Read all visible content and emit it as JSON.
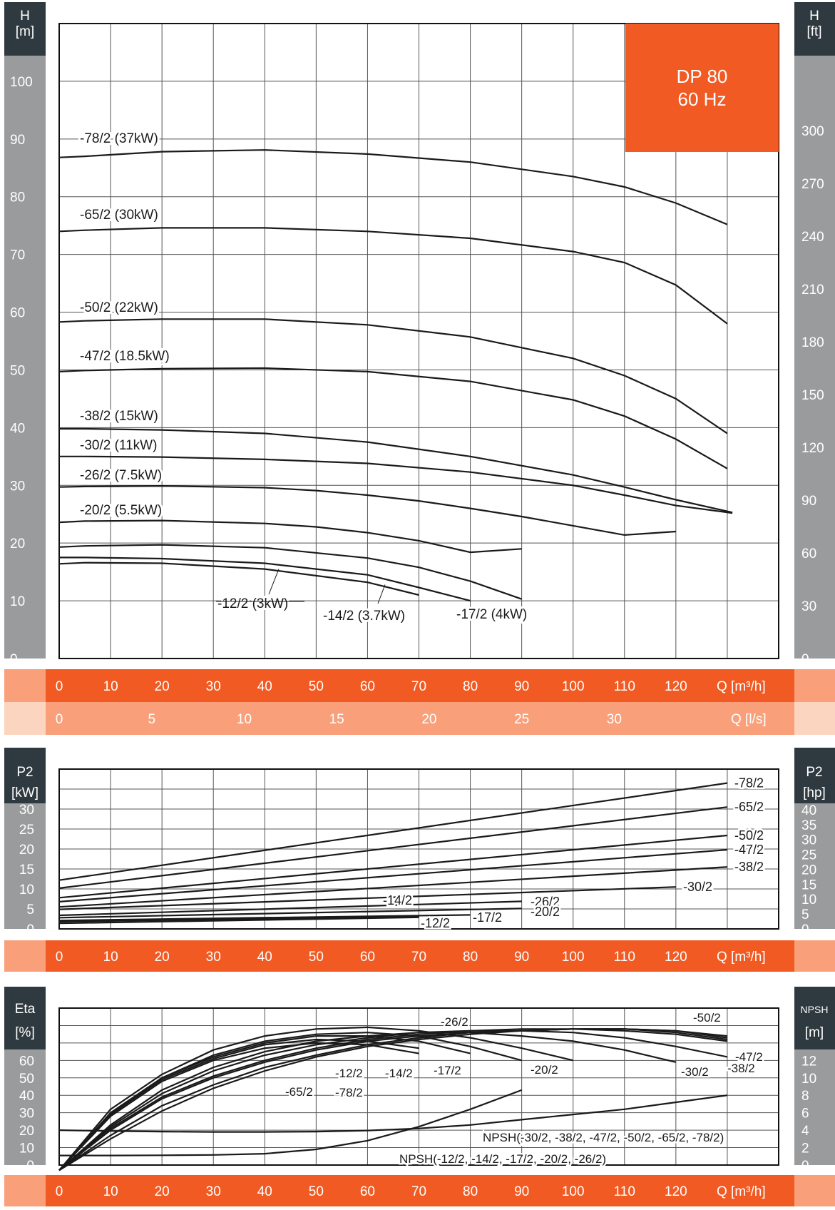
{
  "colors": {
    "orange": "#f15a22",
    "light_orange": "#f9a07a",
    "pale_orange": "#fbd5c0",
    "sidebar_gray": "#9a9b9d",
    "sidebar_dark": "#2f3a40",
    "curve": "#1a1a1a",
    "grid": "#555555"
  },
  "header_box": {
    "line1": "DP 80",
    "line2": "60 Hz"
  },
  "chart_data": [
    {
      "name": "head",
      "type": "line",
      "left_axis": {
        "label_top": "H",
        "label_unit": "[m]",
        "ticks": [
          0,
          10,
          20,
          30,
          40,
          50,
          60,
          70,
          80,
          90,
          100
        ],
        "ylim": [
          0,
          110
        ]
      },
      "right_axis": {
        "label_top": "H",
        "label_unit": "[ft]",
        "ticks": [
          0,
          30,
          60,
          90,
          120,
          150,
          180,
          210,
          240,
          270,
          300
        ]
      },
      "x_axis": {
        "ticks": [
          0,
          10,
          20,
          30,
          40,
          50,
          60,
          70,
          80,
          90,
          100,
          110,
          120
        ],
        "unit": "Q [m³/h]",
        "xlim": [
          0,
          140
        ]
      },
      "x_axis_ls": {
        "ticks": [
          0,
          5,
          10,
          15,
          20,
          25,
          30
        ],
        "unit": "Q [l/s]"
      },
      "series": [
        {
          "name": "-78/2 (37kW)",
          "x": [
            0,
            5,
            20,
            40,
            60,
            80,
            100,
            110,
            120,
            130
          ],
          "y": [
            86.8,
            87.0,
            87.8,
            88.1,
            87.4,
            86.0,
            83.5,
            81.7,
            78.9,
            75.2
          ]
        },
        {
          "name": "-65/2 (30kW)",
          "x": [
            0,
            5,
            20,
            40,
            60,
            80,
            100,
            110,
            120,
            130
          ],
          "y": [
            74.0,
            74.2,
            74.6,
            74.6,
            74.0,
            72.8,
            70.5,
            68.6,
            64.7,
            58.0
          ]
        },
        {
          "name": "-50/2 (22kW)",
          "x": [
            0,
            5,
            20,
            40,
            60,
            80,
            100,
            110,
            120,
            130
          ],
          "y": [
            58.3,
            58.5,
            58.8,
            58.8,
            57.8,
            55.7,
            52.0,
            49.0,
            45.0,
            39.0
          ]
        },
        {
          "name": "-47/2 (18.5kW)",
          "x": [
            0,
            5,
            20,
            40,
            60,
            80,
            100,
            110,
            120,
            130
          ],
          "y": [
            49.7,
            49.9,
            50.2,
            50.3,
            49.7,
            48.0,
            44.8,
            42.0,
            38.0,
            32.9
          ]
        },
        {
          "name": "-38/2 (15kW)",
          "x": [
            0,
            5,
            20,
            40,
            60,
            80,
            100,
            110,
            120,
            131
          ],
          "y": [
            39.8,
            39.8,
            39.6,
            39.0,
            37.5,
            35.0,
            31.8,
            29.7,
            27.5,
            25.3
          ]
        },
        {
          "name": "-30/2 (11kW)",
          "x": [
            0,
            5,
            20,
            40,
            60,
            80,
            100,
            110,
            120,
            131
          ],
          "y": [
            35.0,
            35.0,
            34.9,
            34.5,
            33.8,
            32.3,
            30.0,
            28.3,
            26.5,
            25.2
          ]
        },
        {
          "name": "-26/2 (7.5kW)",
          "x": [
            0,
            5,
            20,
            40,
            50,
            60,
            70,
            80,
            90,
            100,
            110,
            120
          ],
          "y": [
            29.7,
            29.8,
            29.9,
            29.6,
            29.1,
            28.3,
            27.3,
            26.0,
            24.6,
            23.0,
            21.4,
            22.0
          ]
        },
        {
          "name": "-20/2 (5.5kW)",
          "x": [
            0,
            5,
            20,
            40,
            50,
            60,
            70,
            80,
            90
          ],
          "y": [
            23.6,
            23.8,
            23.9,
            23.4,
            22.8,
            21.8,
            20.4,
            18.4,
            19.0
          ]
        },
        {
          "name": "-17/2 (4kW)",
          "x": [
            0,
            5,
            20,
            40,
            60,
            70,
            80,
            90
          ],
          "y": [
            19.3,
            19.5,
            19.7,
            19.2,
            17.4,
            15.8,
            13.4,
            10.3
          ]
        },
        {
          "name": "-14/2 (3.7kW)",
          "x": [
            0,
            5,
            20,
            40,
            60,
            70,
            80
          ],
          "y": [
            17.5,
            17.5,
            17.3,
            16.5,
            14.5,
            12.3,
            10.0
          ]
        },
        {
          "name": "-12/2 (3kW)",
          "x": [
            0,
            5,
            20,
            40,
            60,
            70
          ],
          "y": [
            16.4,
            16.6,
            16.5,
            15.5,
            13.2,
            11.0
          ]
        }
      ]
    },
    {
      "name": "power",
      "type": "line",
      "left_axis": {
        "label_top": "P2",
        "label_unit": "[kW]",
        "ticks": [
          0,
          5,
          10,
          15,
          20,
          25,
          30
        ],
        "ylim": [
          0,
          40
        ]
      },
      "right_axis": {
        "label_top": "P2",
        "label_unit": "[hp]",
        "ticks": [
          0,
          5,
          10,
          15,
          20,
          25,
          30,
          35,
          40
        ]
      },
      "x_axis": {
        "ticks": [
          0,
          10,
          20,
          30,
          40,
          50,
          60,
          70,
          80,
          90,
          100,
          110,
          120
        ],
        "unit": "Q [m³/h]",
        "xlim": [
          0,
          140
        ]
      },
      "series": [
        {
          "name": "-78/2",
          "x": [
            0,
            130
          ],
          "y": [
            12.2,
            36.5
          ]
        },
        {
          "name": "-65/2",
          "x": [
            0,
            130
          ],
          "y": [
            10.2,
            30.5
          ]
        },
        {
          "name": "-50/2",
          "x": [
            0,
            130
          ],
          "y": [
            7.8,
            23.4
          ]
        },
        {
          "name": "-47/2",
          "x": [
            0,
            130
          ],
          "y": [
            6.8,
            19.8
          ]
        },
        {
          "name": "-38/2",
          "x": [
            0,
            130
          ],
          "y": [
            5.5,
            15.5
          ]
        },
        {
          "name": "-30/2",
          "x": [
            0,
            120
          ],
          "y": [
            4.9,
            10.5
          ]
        },
        {
          "name": "-26/2",
          "x": [
            0,
            90
          ],
          "y": [
            3.4,
            6.9
          ]
        },
        {
          "name": "-20/2",
          "x": [
            0,
            90
          ],
          "y": [
            2.8,
            5.1
          ]
        },
        {
          "name": "-17/2",
          "x": [
            0,
            80
          ],
          "y": [
            2.1,
            3.5
          ]
        },
        {
          "name": "-14/2",
          "x": [
            0,
            70
          ],
          "y": [
            1.8,
            3.1
          ]
        },
        {
          "name": "-12/2",
          "x": [
            0,
            70
          ],
          "y": [
            1.4,
            2.9
          ]
        }
      ]
    },
    {
      "name": "efficiency",
      "type": "line",
      "left_axis": {
        "label_top": "Eta",
        "label_unit": "[%]",
        "ticks": [
          0,
          10,
          20,
          30,
          40,
          50,
          60
        ],
        "ylim": [
          0,
          90
        ]
      },
      "right_axis": {
        "label_top": "NPSH",
        "label_unit": "[m]",
        "ticks": [
          0,
          2,
          4,
          6,
          8,
          10,
          12
        ]
      },
      "x_axis": {
        "ticks": [
          0,
          10,
          20,
          30,
          40,
          50,
          60,
          70,
          80,
          90,
          100,
          110,
          120
        ],
        "unit": "Q [m³/h]",
        "xlim": [
          0,
          140
        ]
      },
      "series": [
        {
          "name": "-26/2",
          "x": [
            0,
            10,
            20,
            30,
            40,
            50,
            60,
            70,
            80,
            90,
            100
          ],
          "y": [
            -3,
            32,
            52,
            66,
            74,
            78,
            79,
            77,
            73,
            67,
            60
          ]
        },
        {
          "name": "-20/2",
          "x": [
            0,
            10,
            20,
            30,
            40,
            50,
            60,
            70,
            80,
            90
          ],
          "y": [
            -3,
            30,
            50,
            63,
            71,
            75,
            76,
            74,
            68,
            60
          ]
        },
        {
          "name": "-50/2",
          "x": [
            0,
            10,
            20,
            30,
            40,
            50,
            60,
            70,
            80,
            90,
            100,
            110,
            120,
            130
          ],
          "y": [
            -3,
            20,
            38,
            50,
            59,
            66,
            71,
            74,
            76,
            77,
            78,
            78,
            77,
            73
          ]
        },
        {
          "name": "-47/2",
          "x": [
            0,
            10,
            20,
            30,
            40,
            50,
            60,
            70,
            80,
            90,
            100,
            110,
            120,
            130
          ],
          "y": [
            -3,
            21,
            39,
            51,
            60,
            67,
            72,
            75,
            77,
            78,
            78,
            77,
            75,
            71
          ]
        },
        {
          "name": "-38/2",
          "x": [
            0,
            10,
            20,
            30,
            40,
            50,
            60,
            70,
            80,
            90,
            100,
            110,
            120,
            130
          ],
          "y": [
            -3,
            22,
            41,
            54,
            63,
            69,
            73,
            76,
            77,
            77,
            76,
            73,
            68,
            62
          ]
        },
        {
          "name": "-30/2",
          "x": [
            0,
            10,
            20,
            30,
            40,
            50,
            60,
            70,
            80,
            90,
            100,
            110,
            120
          ],
          "y": [
            -3,
            23,
            43,
            56,
            65,
            71,
            74,
            76,
            76,
            74,
            71,
            66,
            59
          ]
        },
        {
          "name": "-65/2",
          "x": [
            0,
            10,
            20,
            30,
            40,
            50,
            60,
            70,
            80,
            90,
            100,
            110,
            120,
            130
          ],
          "y": [
            -3,
            17,
            34,
            46,
            56,
            63,
            69,
            73,
            76,
            77,
            78,
            78,
            76,
            72
          ]
        },
        {
          "name": "-78/2",
          "x": [
            0,
            10,
            20,
            30,
            40,
            50,
            60,
            70,
            80,
            90,
            100,
            110,
            120,
            130
          ],
          "y": [
            -3,
            15,
            31,
            44,
            54,
            62,
            68,
            72,
            75,
            77,
            78,
            78,
            77,
            74
          ]
        },
        {
          "name": "-12/2",
          "x": [
            0,
            10,
            20,
            30,
            40,
            50,
            60,
            70
          ],
          "y": [
            -3,
            28,
            48,
            60,
            67,
            70,
            69,
            64
          ]
        },
        {
          "name": "-14/2",
          "x": [
            0,
            10,
            20,
            30,
            40,
            50,
            60,
            70
          ],
          "y": [
            -3,
            29,
            49,
            61,
            69,
            72,
            71,
            67
          ]
        },
        {
          "name": "-17/2",
          "x": [
            0,
            10,
            20,
            30,
            40,
            50,
            60,
            70,
            80
          ],
          "y": [
            -3,
            29,
            50,
            62,
            70,
            74,
            74,
            71,
            64
          ]
        },
        {
          "name": "NPSH(-30/2, -38/2, -47/2, -50/2, -65/2, -78/2)",
          "x": [
            0,
            10,
            20,
            30,
            40,
            50,
            60,
            70,
            80,
            90,
            100,
            110,
            120,
            130
          ],
          "y": [
            20,
            19.5,
            19.2,
            19,
            19,
            19.2,
            19.8,
            21,
            23,
            26,
            29,
            32,
            36,
            40
          ]
        },
        {
          "name": "NPSH(-12/2, -14/2, -17/2, -20/2, -26/2)",
          "x": [
            0,
            10,
            20,
            30,
            40,
            50,
            60,
            70,
            80,
            90
          ],
          "y": [
            5.5,
            5.5,
            5.6,
            5.8,
            6.5,
            9,
            14,
            22,
            32,
            43
          ]
        }
      ]
    }
  ]
}
